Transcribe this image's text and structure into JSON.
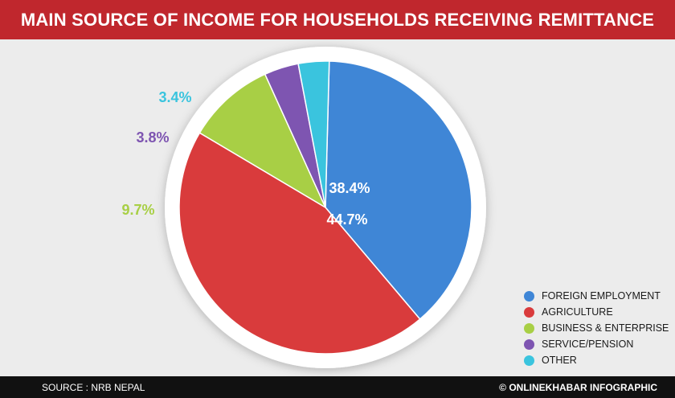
{
  "title": "MAIN SOURCE OF INCOME FOR HOUSEHOLDS RECEIVING REMITTANCE",
  "source": "SOURCE : NRB NEPAL",
  "credit": "© ONLINEKHABAR INFOGRAPHIC",
  "colors": {
    "background": "#ececec",
    "title_bar": "#c0272d",
    "footer": "#111111"
  },
  "chart_data": {
    "type": "pie",
    "legend_position": "bottom-right",
    "slices": [
      {
        "name": "FOREIGN EMPLOYMENT",
        "value": 38.4,
        "label": "38.4%",
        "color": "#3f86d6"
      },
      {
        "name": "AGRICULTURE",
        "value": 44.7,
        "label": "44.7%",
        "color": "#d93b3c"
      },
      {
        "name": "BUSINESS & ENTERPRISE",
        "value": 9.7,
        "label": "9.7%",
        "color": "#a8cf45"
      },
      {
        "name": "SERVICE/PENSION",
        "value": 3.8,
        "label": "3.8%",
        "color": "#7e55b1"
      },
      {
        "name": "OTHER",
        "value": 3.4,
        "label": "3.4%",
        "color": "#3ac4de"
      }
    ]
  }
}
